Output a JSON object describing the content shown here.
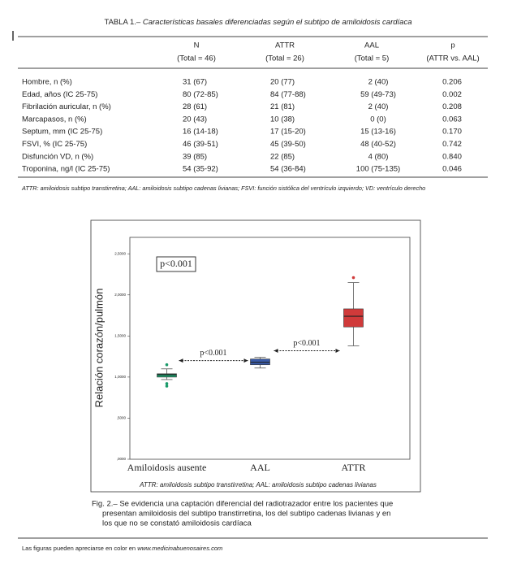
{
  "table": {
    "label": "TABLA 1.–",
    "title": "Características basales diferenciadas según el subtipo de amiloidosis cardíaca",
    "columns": [
      [
        "N",
        "(Total = 46)"
      ],
      [
        "ATTR",
        "(Total = 26)"
      ],
      [
        "AAL",
        "(Total = 5)"
      ],
      [
        "p",
        "(ATTR vs. AAL)"
      ]
    ],
    "rows": [
      [
        "Hombre, n (%)",
        "31 (67)",
        "20 (77)",
        "2 (40)",
        "0.206"
      ],
      [
        "Edad, años (IC 25-75)",
        "80 (72-85)",
        "84 (77-88)",
        "59 (49-73)",
        "0.002"
      ],
      [
        "Fibrilación auricular, n (%)",
        "28 (61)",
        "21 (81)",
        "2 (40)",
        "0.208"
      ],
      [
        "Marcapasos, n (%)",
        "20 (43)",
        "10 (38)",
        "0 (0)",
        "0.063"
      ],
      [
        "Septum, mm (IC 25-75)",
        "16 (14-18)",
        "17 (15-20)",
        "15 (13-16)",
        "0.170"
      ],
      [
        "FSVI, % (IC 25-75)",
        "46 (39-51)",
        "45 (39-50)",
        "48 (40-52)",
        "0.742"
      ],
      [
        "Disfunción VD, n (%)",
        "39 (85)",
        "22 (85)",
        "4 (80)",
        "0.840"
      ],
      [
        "Troponina, ng/l (IC 25-75)",
        "54 (35-92)",
        "54 (36-84)",
        "100 (75-135)",
        "0.046"
      ]
    ],
    "footnote": "ATTR: amiloidosis subtipo transtirretina; AAL: amiloidosis subtipo cadenas livianas; FSVI: función sistólica del ventrículo izquierdo; VD: ventrículo derecho"
  },
  "chart_data": {
    "type": "box",
    "y_label": "Relación corazón/pulmón",
    "categories": [
      "Amiloidosis ausente",
      "AAL",
      "ATTR"
    ],
    "boxes": [
      {
        "color": "#1a9a6a",
        "min": 0.97,
        "q1": 1.0,
        "median": 1.03,
        "q3": 1.04,
        "max": 1.1,
        "outliers": [
          1.15,
          0.92,
          0.89
        ]
      },
      {
        "color": "#3a5ba8",
        "min": 1.11,
        "q1": 1.15,
        "median": 1.18,
        "q3": 1.22,
        "max": 1.24,
        "outliers": []
      },
      {
        "color": "#d03a3a",
        "min": 1.38,
        "q1": 1.61,
        "median": 1.74,
        "q3": 1.83,
        "max": 2.15,
        "outliers": [
          2.21
        ]
      }
    ],
    "ylim": [
      0,
      2.7
    ],
    "yticks": [
      {
        "value": 0,
        "label": ",0000"
      },
      {
        "value": 0.5,
        "label": ",5000"
      },
      {
        "value": 1,
        "label": "1,0000"
      },
      {
        "value": 1.5,
        "label": "1,5000"
      },
      {
        "value": 2,
        "label": "2,0000"
      },
      {
        "value": 2.5,
        "label": "2,5000"
      }
    ],
    "annotations": [
      "p<0.001",
      "p<0.001",
      "p<0.001"
    ],
    "caption": "ATTR: amiloidosis subtipo transtirretina; AAL: amiloidosis subtipo cadenas livianas"
  },
  "caption": [
    "Fig. 2.– Se evidencia una captación diferencial del radiotrazador entre los pacientes que",
    "presentan amiloidosis del subtipo transtirretina, los del subtipo cadenas livianas y en",
    "los que no se constató amiloidosis cardíaca"
  ],
  "footer": {
    "text": "Las figuras pueden apreciarse en color en",
    "link": "www.medicinabuenosaires.com"
  }
}
